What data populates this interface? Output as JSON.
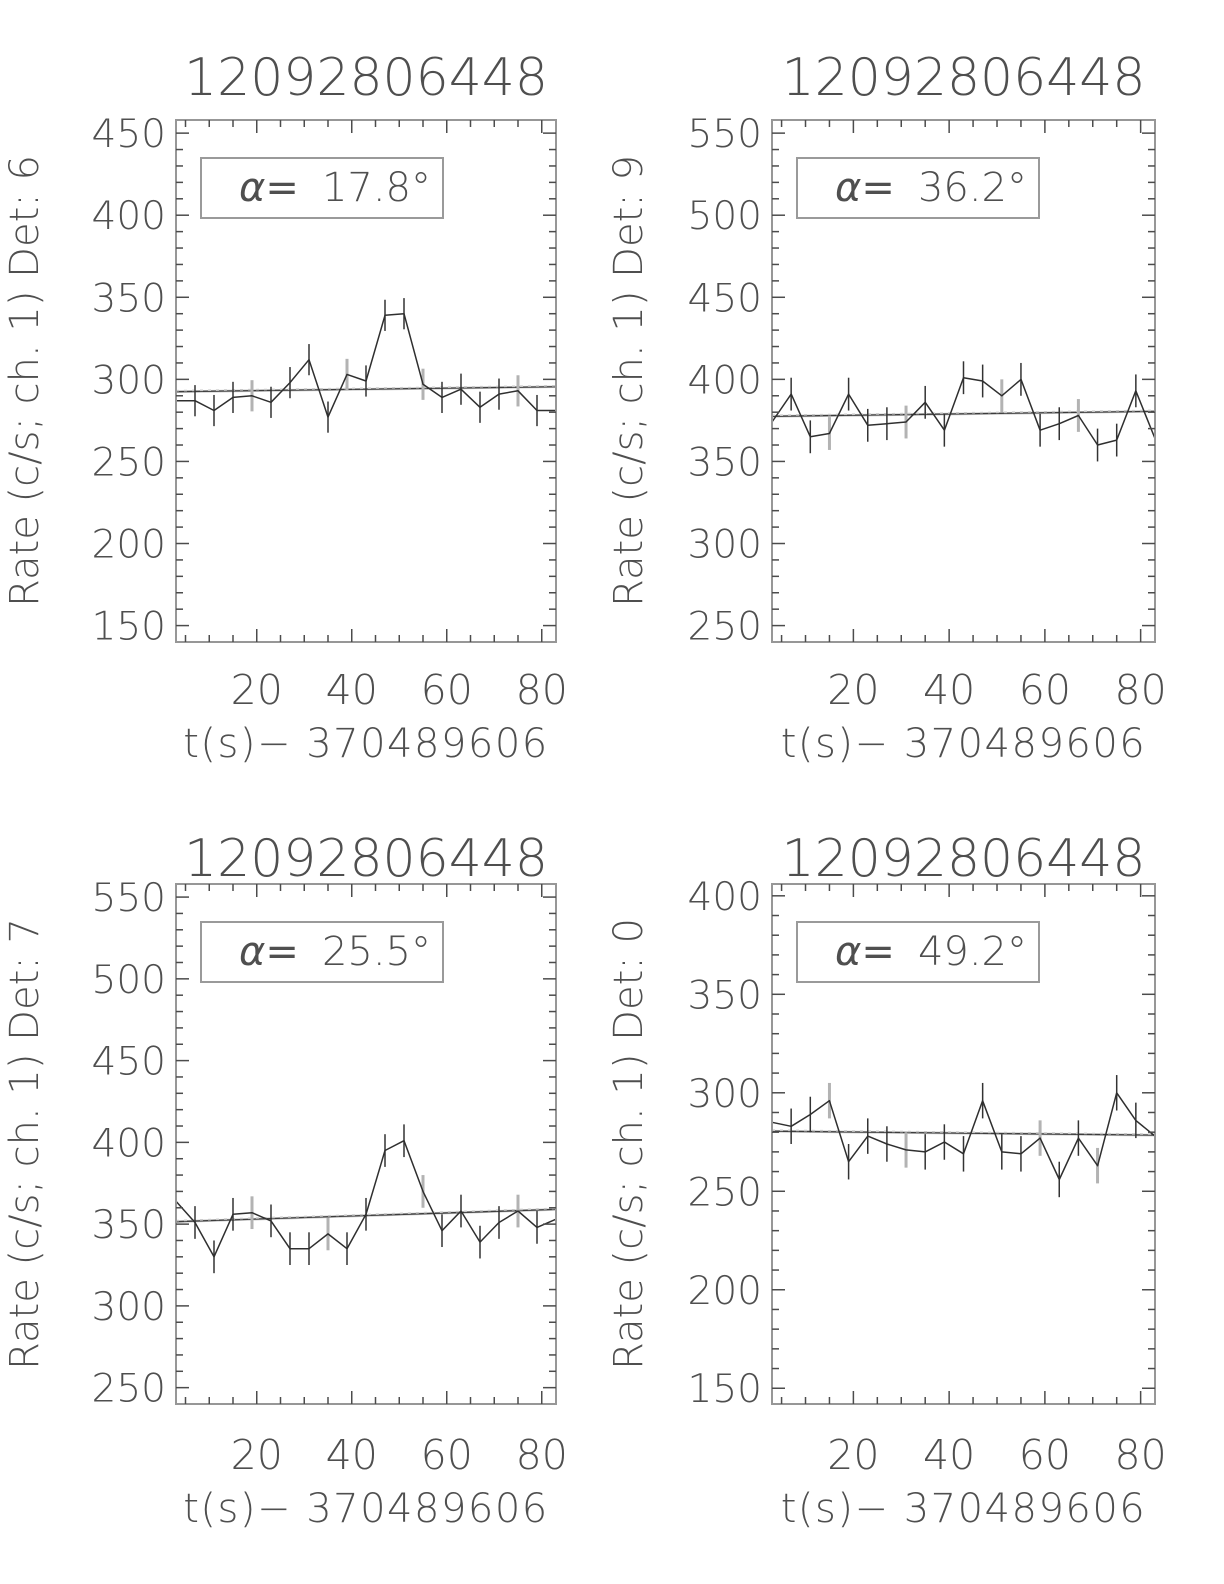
{
  "figure": {
    "background": "#ffffff",
    "frame_color": "#979797",
    "tick_color": "#4c4c4c",
    "text_color": "#4f4f4f",
    "annotation_border_color": "#9a9a9a",
    "annotation_equals_color": "#9a9a9a",
    "data_line_color": "#2f2f2f",
    "error_bar_dark_color": "#333333",
    "error_bar_gray_color": "#b3b3b3",
    "fit_line_dark_color": "#3d3d3d",
    "fit_line_gray_color": "#c9c9c9"
  },
  "chart_data": [
    {
      "type": "line",
      "title": "12092806448",
      "ylabel": "Rate (c/s; ch. 1) Det: 6",
      "xlabel": "t(s)− 370489606",
      "annotation": {
        "label": "α=",
        "value": "17.8°"
      },
      "xlim": [
        3,
        83
      ],
      "ylim": [
        140,
        458
      ],
      "xticks": [
        20,
        40,
        60,
        80
      ],
      "yticks": [
        150,
        200,
        250,
        300,
        350,
        400,
        450
      ],
      "x_minor_step": 5,
      "y_minor_step": 10,
      "grid": false,
      "legend": "none",
      "x": [
        3,
        7,
        11,
        15,
        19,
        23,
        27,
        31,
        35,
        39,
        43,
        47,
        51,
        55,
        59,
        63,
        67,
        71,
        75,
        79,
        83
      ],
      "y": [
        287,
        287,
        281,
        289,
        290,
        286,
        298,
        312,
        277,
        303,
        299,
        339,
        340,
        297,
        289,
        294,
        283,
        291,
        293,
        281,
        281
      ],
      "yerr": 9.5,
      "gray_error_indices": [
        4,
        9,
        13,
        18
      ],
      "fit_line": {
        "x": [
          3,
          83
        ],
        "y": [
          292.5,
          295.5
        ]
      }
    },
    {
      "type": "line",
      "title": "12092806448",
      "ylabel": "Rate (c/s; ch. 1) Det: 9",
      "xlabel": "t(s)− 370489606",
      "annotation": {
        "label": "α=",
        "value": "36.2°"
      },
      "xlim": [
        3,
        83
      ],
      "ylim": [
        240,
        558
      ],
      "xticks": [
        20,
        40,
        60,
        80
      ],
      "yticks": [
        250,
        300,
        350,
        400,
        450,
        500,
        550
      ],
      "x_minor_step": 5,
      "y_minor_step": 10,
      "grid": false,
      "legend": "none",
      "x": [
        3,
        7,
        11,
        15,
        19,
        23,
        27,
        31,
        35,
        39,
        43,
        47,
        51,
        55,
        59,
        63,
        67,
        71,
        75,
        79,
        83
      ],
      "y": [
        374,
        391,
        365,
        367,
        391,
        372,
        373,
        374,
        386,
        369,
        401,
        399,
        390,
        400,
        369,
        373,
        378,
        360,
        363,
        393,
        364
      ],
      "yerr": 10,
      "gray_error_indices": [
        3,
        7,
        12,
        16
      ],
      "fit_line": {
        "x": [
          3,
          83
        ],
        "y": [
          377.5,
          380.5
        ]
      }
    },
    {
      "type": "line",
      "title": "12092806448",
      "ylabel": "Rate (c/s; ch. 1) Det: 7",
      "xlabel": "t(s)− 370489606",
      "annotation": {
        "label": "α=",
        "value": "25.5°"
      },
      "xlim": [
        3,
        83
      ],
      "ylim": [
        240,
        558
      ],
      "xticks": [
        20,
        40,
        60,
        80
      ],
      "yticks": [
        250,
        300,
        350,
        400,
        450,
        500,
        550
      ],
      "x_minor_step": 5,
      "y_minor_step": 10,
      "grid": false,
      "legend": "none",
      "x": [
        3,
        7,
        11,
        15,
        19,
        23,
        27,
        31,
        35,
        39,
        43,
        47,
        51,
        55,
        59,
        63,
        67,
        71,
        75,
        79,
        83
      ],
      "y": [
        364,
        351,
        330,
        356,
        357,
        352,
        335,
        335,
        344,
        335,
        356,
        395,
        401,
        370,
        346,
        358,
        339,
        351,
        358,
        348,
        353
      ],
      "yerr": 10,
      "gray_error_indices": [
        4,
        8,
        13,
        18
      ],
      "fit_line": {
        "x": [
          3,
          83
        ],
        "y": [
          351.5,
          359
        ]
      }
    },
    {
      "type": "line",
      "title": "12092806448",
      "ylabel": "Rate (c/s; ch. 1) Det: 0",
      "xlabel": "t(s)− 370489606",
      "annotation": {
        "label": "α=",
        "value": "49.2°"
      },
      "xlim": [
        3,
        83
      ],
      "ylim": [
        142,
        406
      ],
      "xticks": [
        20,
        40,
        60,
        80
      ],
      "yticks": [
        150,
        200,
        250,
        300,
        350,
        400
      ],
      "x_minor_step": 5,
      "y_minor_step": 10,
      "grid": false,
      "legend": "none",
      "x": [
        3,
        7,
        11,
        15,
        19,
        23,
        27,
        31,
        35,
        39,
        43,
        47,
        51,
        55,
        59,
        63,
        67,
        71,
        75,
        79,
        83
      ],
      "y": [
        285,
        283,
        289,
        296,
        265,
        278,
        274,
        271,
        270,
        275,
        269,
        296,
        270,
        269,
        277,
        256,
        277,
        263,
        300,
        286,
        278
      ],
      "yerr": 9,
      "gray_error_indices": [
        3,
        7,
        14,
        17
      ],
      "fit_line": {
        "x": [
          3,
          83
        ],
        "y": [
          280.5,
          278.5
        ]
      }
    }
  ]
}
